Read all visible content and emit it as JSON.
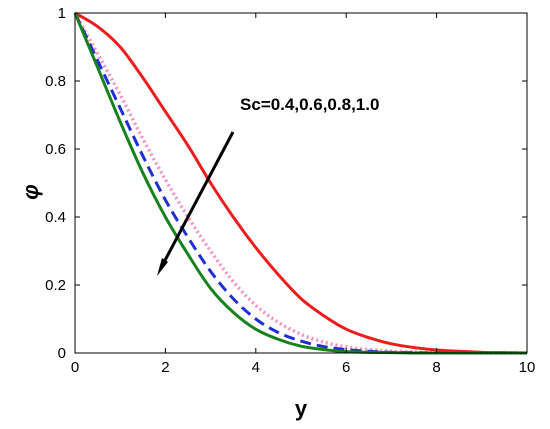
{
  "chart_data": {
    "type": "line",
    "xlabel": "y",
    "ylabel": "φ",
    "xlim": [
      0,
      10
    ],
    "ylim": [
      0,
      1
    ],
    "xticks": [
      0,
      2,
      4,
      6,
      8,
      10
    ],
    "yticks": [
      0,
      0.2,
      0.4,
      0.6,
      0.8,
      1
    ],
    "x_tick_labels": [
      "0",
      "2",
      "4",
      "6",
      "8",
      "10"
    ],
    "y_tick_labels": [
      "0",
      "0.2",
      "0.4",
      "0.6",
      "0.8",
      "1"
    ],
    "grid": false,
    "annotation": "Sc=0.4,0.6,0.8,1.0",
    "x": [
      0,
      0.5,
      1,
      1.5,
      2,
      2.5,
      3,
      3.5,
      4,
      4.5,
      5,
      5.5,
      6,
      6.5,
      7,
      7.5,
      8,
      8.5,
      9,
      9.5,
      10
    ],
    "series": [
      {
        "style": "solid",
        "color": "#ee1c1c",
        "values": [
          1,
          0.96,
          0.9,
          0.81,
          0.71,
          0.61,
          0.5,
          0.4,
          0.31,
          0.23,
          0.16,
          0.11,
          0.07,
          0.045,
          0.027,
          0.016,
          0.009,
          0.005,
          0.002,
          0.001,
          0
        ]
      },
      {
        "style": "dotted",
        "color": "#f48fc4",
        "values": [
          1,
          0.88,
          0.76,
          0.63,
          0.51,
          0.4,
          0.3,
          0.21,
          0.14,
          0.09,
          0.055,
          0.032,
          0.018,
          0.01,
          0.005,
          0.003,
          0.001,
          0.0005,
          0,
          0,
          0
        ]
      },
      {
        "style": "dashed",
        "color": "#1f2ed6",
        "values": [
          1,
          0.86,
          0.72,
          0.58,
          0.45,
          0.34,
          0.24,
          0.16,
          0.1,
          0.06,
          0.035,
          0.019,
          0.01,
          0.005,
          0.002,
          0.001,
          0,
          0,
          0,
          0,
          0
        ]
      },
      {
        "style": "solid",
        "color": "#16821e",
        "values": [
          1,
          0.84,
          0.68,
          0.53,
          0.4,
          0.29,
          0.19,
          0.12,
          0.07,
          0.04,
          0.02,
          0.01,
          0.004,
          0.002,
          0.001,
          0,
          0,
          0,
          0,
          0,
          0
        ]
      }
    ]
  }
}
